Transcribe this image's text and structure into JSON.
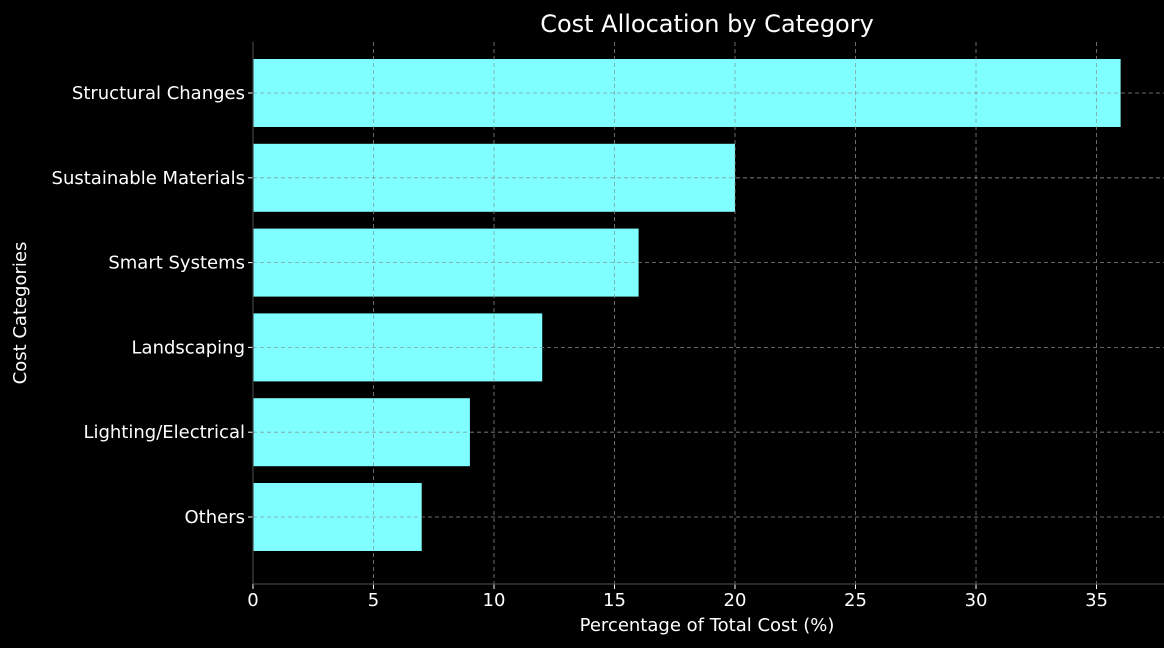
{
  "chart_data": {
    "type": "bar",
    "orientation": "horizontal",
    "title": "Cost Allocation by Category",
    "xlabel": "Percentage of Total Cost (%)",
    "ylabel": "Cost Categories",
    "categories": [
      "Structural Changes",
      "Sustainable Materials",
      "Smart Systems",
      "Landscaping",
      "Lighting/Electrical",
      "Others"
    ],
    "values": [
      36,
      20,
      16,
      12,
      9,
      7
    ],
    "xlim": [
      0,
      37.8
    ],
    "xticks": [
      0,
      5,
      10,
      15,
      20,
      25,
      30,
      35
    ],
    "grid": true,
    "colors": {
      "background": "#000000",
      "bar": "#7fffff",
      "text": "#ffffff",
      "grid": "#808080"
    }
  }
}
